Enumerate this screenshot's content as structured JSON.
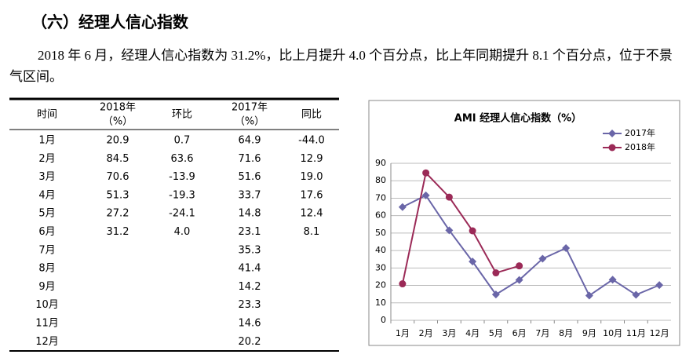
{
  "heading": "（六）经理人信心指数",
  "paragraph": "2018 年 6 月，经理人信心指数为 31.2%，比上月提升 4.0 个百分点，比上年同期提升 8.1 个百分点，位于不景气区间。",
  "table": {
    "header": [
      "时间",
      [
        "2018年",
        "（%）"
      ],
      "环比",
      [
        "2017年",
        "（%）"
      ],
      "同比"
    ],
    "rows": [
      [
        "1月",
        "20.9",
        "0.7",
        "64.9",
        "-44.0"
      ],
      [
        "2月",
        "84.5",
        "63.6",
        "71.6",
        "12.9"
      ],
      [
        "3月",
        "70.6",
        "-13.9",
        "51.6",
        "19.0"
      ],
      [
        "4月",
        "51.3",
        "-19.3",
        "33.7",
        "17.6"
      ],
      [
        "5月",
        "27.2",
        "-24.1",
        "14.8",
        "12.4"
      ],
      [
        "6月",
        "31.2",
        "4.0",
        "23.1",
        "8.1"
      ],
      [
        "7月",
        null,
        null,
        "35.3",
        null
      ],
      [
        "8月",
        null,
        null,
        "41.4",
        null
      ],
      [
        "9月",
        null,
        null,
        "14.2",
        null
      ],
      [
        "10月",
        null,
        null,
        "23.3",
        null
      ],
      [
        "11月",
        null,
        null,
        "14.6",
        null
      ],
      [
        "12月",
        null,
        null,
        "20.2",
        null
      ]
    ]
  },
  "chart_data": {
    "type": "line",
    "title": "AMI 经理人信心指数（%）",
    "categories": [
      "1月",
      "2月",
      "3月",
      "4月",
      "5月",
      "6月",
      "7月",
      "8月",
      "9月",
      "10月",
      "11月",
      "12月"
    ],
    "series": [
      {
        "name": "2017年",
        "color": "#6a66a8",
        "marker": "diamond",
        "values": [
          64.9,
          71.6,
          51.6,
          33.7,
          14.8,
          23.1,
          35.3,
          41.4,
          14.2,
          23.3,
          14.6,
          20.2
        ]
      },
      {
        "name": "2018年",
        "color": "#9b2a57",
        "marker": "circle",
        "values": [
          20.9,
          84.5,
          70.6,
          51.3,
          27.2,
          31.2,
          null,
          null,
          null,
          null,
          null,
          null
        ]
      }
    ],
    "ylim": [
      0,
      90
    ],
    "yticks": [
      0,
      10,
      20,
      30,
      40,
      50,
      60,
      70,
      80,
      90
    ],
    "grid": true,
    "legend": "top-right"
  }
}
